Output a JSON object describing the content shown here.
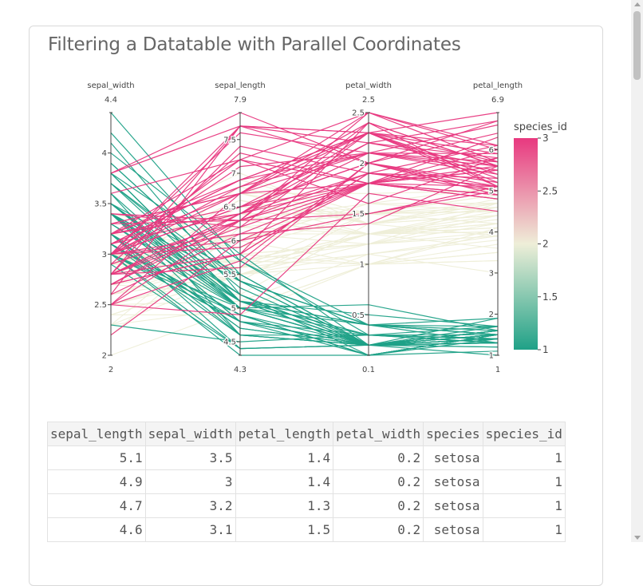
{
  "page_title": "Filtering a Datatable with Parallel Coordinates",
  "chart_data": {
    "type": "parallel_coordinates",
    "title": "",
    "dimensions": [
      {
        "label": "sepal_width",
        "range": [
          2,
          4.4
        ],
        "min_label": "2",
        "max_label": "4.4",
        "ticks": [
          2,
          2.5,
          3,
          3.5,
          4
        ],
        "tick_labels": [
          "2",
          "2.5",
          "3",
          "3.5",
          "4"
        ]
      },
      {
        "label": "sepal_length",
        "range": [
          4.3,
          7.9
        ],
        "min_label": "4.3",
        "max_label": "7.9",
        "ticks": [
          4.5,
          5,
          5.5,
          6,
          6.5,
          7,
          7.5
        ],
        "tick_labels": [
          "4.5",
          "5",
          "5.5",
          "6",
          "6.5",
          "7",
          "7.5"
        ]
      },
      {
        "label": "petal_width",
        "range": [
          0.1,
          2.5
        ],
        "min_label": "0.1",
        "max_label": "2.5",
        "ticks": [
          0.5,
          1,
          1.5,
          2,
          2.5
        ],
        "tick_labels": [
          "0.5",
          "1",
          "1.5",
          "2",
          "2.5"
        ]
      },
      {
        "label": "petal_length",
        "range": [
          1,
          6.9
        ],
        "min_label": "1",
        "max_label": "6.9",
        "ticks": [
          1,
          2,
          3,
          4,
          5,
          6
        ],
        "tick_labels": [
          "1",
          "2",
          "3",
          "4",
          "5",
          "6"
        ]
      }
    ],
    "color_dimension": "species_id",
    "colorscale": [
      "#1fa187",
      "#eeeed8",
      "#e8387f"
    ],
    "colorbar": {
      "title": "species_id",
      "range": [
        1,
        3
      ],
      "ticks": [
        1,
        1.5,
        2,
        2.5,
        3
      ],
      "tick_labels": [
        "1",
        "1.5",
        "2",
        "2.5",
        "3"
      ]
    },
    "records": [
      [
        3.5,
        5.1,
        0.2,
        1.4,
        1
      ],
      [
        3.0,
        4.9,
        0.2,
        1.4,
        1
      ],
      [
        3.2,
        4.7,
        0.2,
        1.3,
        1
      ],
      [
        3.1,
        4.6,
        0.2,
        1.5,
        1
      ],
      [
        3.6,
        5.0,
        0.2,
        1.4,
        1
      ],
      [
        3.9,
        5.4,
        0.4,
        1.7,
        1
      ],
      [
        3.4,
        4.6,
        0.3,
        1.4,
        1
      ],
      [
        3.4,
        5.0,
        0.2,
        1.5,
        1
      ],
      [
        2.9,
        4.4,
        0.2,
        1.4,
        1
      ],
      [
        3.1,
        4.9,
        0.1,
        1.5,
        1
      ],
      [
        3.7,
        5.4,
        0.2,
        1.5,
        1
      ],
      [
        3.4,
        4.8,
        0.2,
        1.6,
        1
      ],
      [
        3.0,
        4.8,
        0.1,
        1.4,
        1
      ],
      [
        3.0,
        4.3,
        0.1,
        1.1,
        1
      ],
      [
        4.0,
        5.8,
        0.2,
        1.2,
        1
      ],
      [
        4.4,
        5.7,
        0.4,
        1.5,
        1
      ],
      [
        3.9,
        5.4,
        0.4,
        1.3,
        1
      ],
      [
        3.5,
        5.1,
        0.3,
        1.4,
        1
      ],
      [
        3.8,
        5.7,
        0.3,
        1.7,
        1
      ],
      [
        3.8,
        5.1,
        0.3,
        1.5,
        1
      ],
      [
        3.4,
        5.4,
        0.2,
        1.7,
        1
      ],
      [
        3.7,
        5.1,
        0.4,
        1.5,
        1
      ],
      [
        3.6,
        4.6,
        0.2,
        1.0,
        1
      ],
      [
        3.3,
        5.1,
        0.5,
        1.7,
        1
      ],
      [
        3.4,
        4.8,
        0.2,
        1.9,
        1
      ],
      [
        3.0,
        5.0,
        0.2,
        1.6,
        1
      ],
      [
        3.4,
        5.0,
        0.4,
        1.6,
        1
      ],
      [
        3.5,
        5.2,
        0.2,
        1.5,
        1
      ],
      [
        3.4,
        5.2,
        0.2,
        1.4,
        1
      ],
      [
        3.2,
        4.7,
        0.2,
        1.6,
        1
      ],
      [
        3.1,
        4.8,
        0.2,
        1.6,
        1
      ],
      [
        3.4,
        5.4,
        0.4,
        1.5,
        1
      ],
      [
        4.1,
        5.2,
        0.1,
        1.5,
        1
      ],
      [
        4.2,
        5.5,
        0.2,
        1.4,
        1
      ],
      [
        3.1,
        4.9,
        0.1,
        1.5,
        1
      ],
      [
        3.2,
        5.0,
        0.2,
        1.2,
        1
      ],
      [
        3.5,
        5.5,
        0.2,
        1.3,
        1
      ],
      [
        3.1,
        4.9,
        0.1,
        1.5,
        1
      ],
      [
        3.0,
        4.4,
        0.2,
        1.3,
        1
      ],
      [
        3.4,
        5.1,
        0.2,
        1.5,
        1
      ],
      [
        3.5,
        5.0,
        0.3,
        1.3,
        1
      ],
      [
        2.3,
        4.5,
        0.3,
        1.3,
        1
      ],
      [
        3.2,
        4.4,
        0.2,
        1.3,
        1
      ],
      [
        3.5,
        5.0,
        0.6,
        1.6,
        1
      ],
      [
        3.8,
        5.1,
        0.4,
        1.9,
        1
      ],
      [
        3.0,
        4.8,
        0.3,
        1.4,
        1
      ],
      [
        3.8,
        5.1,
        0.2,
        1.6,
        1
      ],
      [
        3.2,
        4.6,
        0.2,
        1.4,
        1
      ],
      [
        3.7,
        5.3,
        0.2,
        1.5,
        1
      ],
      [
        3.3,
        5.0,
        0.2,
        1.4,
        1
      ],
      [
        3.2,
        7.0,
        1.4,
        4.7,
        2
      ],
      [
        3.2,
        6.4,
        1.5,
        4.5,
        2
      ],
      [
        3.1,
        6.9,
        1.5,
        4.9,
        2
      ],
      [
        2.3,
        5.5,
        1.3,
        4.0,
        2
      ],
      [
        2.8,
        6.5,
        1.5,
        4.6,
        2
      ],
      [
        2.8,
        5.7,
        1.3,
        4.5,
        2
      ],
      [
        3.3,
        6.3,
        1.6,
        4.7,
        2
      ],
      [
        2.4,
        4.9,
        1.0,
        3.3,
        2
      ],
      [
        2.9,
        6.6,
        1.3,
        4.6,
        2
      ],
      [
        2.7,
        5.2,
        1.4,
        3.9,
        2
      ],
      [
        2.0,
        5.0,
        1.0,
        3.5,
        2
      ],
      [
        3.0,
        5.9,
        1.5,
        4.2,
        2
      ],
      [
        2.2,
        6.0,
        1.0,
        4.0,
        2
      ],
      [
        2.9,
        6.1,
        1.4,
        4.7,
        2
      ],
      [
        2.9,
        5.6,
        1.3,
        3.6,
        2
      ],
      [
        3.1,
        6.7,
        1.4,
        4.4,
        2
      ],
      [
        3.0,
        5.6,
        1.5,
        4.5,
        2
      ],
      [
        2.7,
        5.8,
        1.0,
        4.1,
        2
      ],
      [
        2.2,
        6.2,
        1.5,
        4.5,
        2
      ],
      [
        2.5,
        5.6,
        1.1,
        3.9,
        2
      ],
      [
        3.2,
        5.9,
        1.8,
        4.8,
        2
      ],
      [
        2.8,
        6.1,
        1.3,
        4.0,
        2
      ],
      [
        2.5,
        6.3,
        1.5,
        4.9,
        2
      ],
      [
        2.8,
        6.1,
        1.2,
        4.7,
        2
      ],
      [
        2.9,
        6.4,
        1.3,
        4.3,
        2
      ],
      [
        3.0,
        6.6,
        1.4,
        4.4,
        2
      ],
      [
        2.8,
        6.8,
        1.4,
        4.8,
        2
      ],
      [
        3.0,
        6.7,
        1.7,
        5.0,
        2
      ],
      [
        2.9,
        6.0,
        1.5,
        4.5,
        2
      ],
      [
        2.6,
        5.7,
        1.0,
        3.5,
        2
      ],
      [
        2.4,
        5.5,
        1.1,
        3.8,
        2
      ],
      [
        2.4,
        5.5,
        1.0,
        3.7,
        2
      ],
      [
        2.7,
        5.8,
        1.2,
        3.9,
        2
      ],
      [
        2.7,
        6.0,
        1.6,
        5.1,
        2
      ],
      [
        3.0,
        5.4,
        1.5,
        4.5,
        2
      ],
      [
        3.4,
        6.0,
        1.6,
        4.5,
        2
      ],
      [
        3.1,
        6.7,
        1.5,
        4.7,
        2
      ],
      [
        2.3,
        6.3,
        1.3,
        4.4,
        2
      ],
      [
        3.0,
        5.6,
        1.3,
        4.1,
        2
      ],
      [
        2.5,
        5.5,
        1.3,
        4.0,
        2
      ],
      [
        2.6,
        5.5,
        1.2,
        4.4,
        2
      ],
      [
        3.0,
        6.1,
        1.4,
        4.6,
        2
      ],
      [
        2.6,
        5.8,
        1.2,
        4.0,
        2
      ],
      [
        2.3,
        5.0,
        1.0,
        3.3,
        2
      ],
      [
        2.7,
        5.6,
        1.3,
        4.2,
        2
      ],
      [
        3.0,
        5.7,
        1.2,
        4.2,
        2
      ],
      [
        2.9,
        5.7,
        1.3,
        4.2,
        2
      ],
      [
        2.9,
        6.2,
        1.3,
        4.3,
        2
      ],
      [
        2.5,
        5.1,
        1.1,
        3.0,
        2
      ],
      [
        2.8,
        5.7,
        1.3,
        4.1,
        2
      ],
      [
        3.3,
        6.3,
        2.5,
        6.0,
        3
      ],
      [
        2.7,
        5.8,
        1.9,
        5.1,
        3
      ],
      [
        3.0,
        7.1,
        2.1,
        5.9,
        3
      ],
      [
        2.9,
        6.3,
        1.8,
        5.6,
        3
      ],
      [
        3.0,
        6.5,
        2.2,
        5.8,
        3
      ],
      [
        3.0,
        7.6,
        2.1,
        6.6,
        3
      ],
      [
        2.5,
        4.9,
        1.7,
        4.5,
        3
      ],
      [
        2.9,
        7.3,
        1.8,
        6.3,
        3
      ],
      [
        2.5,
        6.7,
        1.8,
        5.8,
        3
      ],
      [
        3.6,
        7.2,
        2.5,
        6.1,
        3
      ],
      [
        3.2,
        6.5,
        2.0,
        5.1,
        3
      ],
      [
        2.7,
        6.4,
        1.9,
        5.3,
        3
      ],
      [
        3.0,
        6.8,
        2.1,
        5.5,
        3
      ],
      [
        2.5,
        5.7,
        2.0,
        5.0,
        3
      ],
      [
        2.8,
        5.8,
        2.4,
        5.1,
        3
      ],
      [
        3.2,
        6.4,
        2.3,
        5.3,
        3
      ],
      [
        3.0,
        6.5,
        1.8,
        5.5,
        3
      ],
      [
        3.8,
        7.7,
        2.2,
        6.7,
        3
      ],
      [
        2.6,
        7.7,
        2.3,
        6.9,
        3
      ],
      [
        2.2,
        6.0,
        1.5,
        5.0,
        3
      ],
      [
        3.2,
        6.9,
        2.3,
        5.7,
        3
      ],
      [
        2.8,
        5.6,
        2.0,
        4.9,
        3
      ],
      [
        2.8,
        7.7,
        2.0,
        6.7,
        3
      ],
      [
        2.7,
        6.3,
        1.8,
        4.9,
        3
      ],
      [
        3.3,
        6.7,
        2.1,
        5.7,
        3
      ],
      [
        3.2,
        7.2,
        1.8,
        6.0,
        3
      ],
      [
        2.8,
        6.2,
        1.8,
        4.8,
        3
      ],
      [
        3.0,
        6.1,
        1.8,
        4.9,
        3
      ],
      [
        2.8,
        6.4,
        2.1,
        5.6,
        3
      ],
      [
        3.0,
        7.2,
        1.6,
        5.8,
        3
      ],
      [
        2.8,
        7.4,
        1.9,
        6.1,
        3
      ],
      [
        3.8,
        7.9,
        2.0,
        6.4,
        3
      ],
      [
        2.8,
        6.4,
        2.2,
        5.6,
        3
      ],
      [
        2.8,
        6.3,
        1.5,
        5.1,
        3
      ],
      [
        2.6,
        6.1,
        1.4,
        5.6,
        3
      ],
      [
        3.0,
        7.7,
        2.3,
        6.1,
        3
      ],
      [
        3.4,
        6.3,
        2.4,
        5.6,
        3
      ],
      [
        3.1,
        6.4,
        1.8,
        5.5,
        3
      ],
      [
        3.0,
        6.0,
        1.8,
        4.8,
        3
      ],
      [
        3.1,
        6.9,
        2.1,
        5.4,
        3
      ],
      [
        3.1,
        6.7,
        2.4,
        5.6,
        3
      ],
      [
        3.1,
        6.9,
        2.3,
        5.1,
        3
      ],
      [
        2.7,
        5.8,
        1.9,
        5.1,
        3
      ],
      [
        3.2,
        6.8,
        2.3,
        5.9,
        3
      ],
      [
        3.3,
        6.7,
        2.5,
        5.7,
        3
      ],
      [
        3.0,
        6.7,
        2.3,
        5.2,
        3
      ],
      [
        2.5,
        6.3,
        1.9,
        5.0,
        3
      ],
      [
        3.0,
        6.5,
        2.0,
        5.2,
        3
      ],
      [
        3.4,
        6.2,
        2.3,
        5.4,
        3
      ],
      [
        3.0,
        5.9,
        1.8,
        5.1,
        3
      ]
    ]
  },
  "table": {
    "columns": [
      "sepal_length",
      "sepal_width",
      "petal_length",
      "petal_width",
      "species",
      "species_id"
    ],
    "rows": [
      [
        "5.1",
        "3.5",
        "1.4",
        "0.2",
        "setosa",
        "1"
      ],
      [
        "4.9",
        "3",
        "1.4",
        "0.2",
        "setosa",
        "1"
      ],
      [
        "4.7",
        "3.2",
        "1.3",
        "0.2",
        "setosa",
        "1"
      ],
      [
        "4.6",
        "3.1",
        "1.5",
        "0.2",
        "setosa",
        "1"
      ]
    ]
  }
}
